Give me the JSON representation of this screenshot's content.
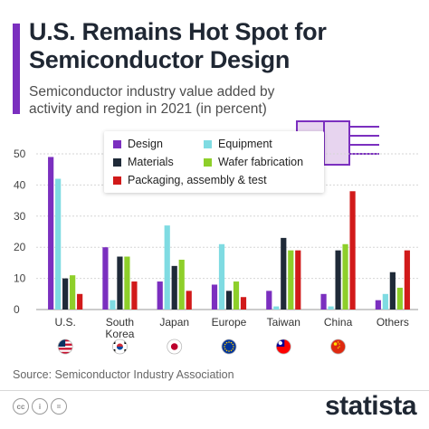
{
  "header": {
    "title": "U.S. Remains Hot Spot for Semiconductor Design",
    "subtitle": "Semiconductor industry value added by activity and region in 2021 (in percent)"
  },
  "colors": {
    "accent": "#7b2fbf",
    "design": "#7b2fbf",
    "equipment": "#7fdbe2",
    "materials": "#1f2a38",
    "wafer_fabrication": "#8ecf2a",
    "packaging": "#d11a1a"
  },
  "chart_data": {
    "type": "bar",
    "categories": [
      "U.S.",
      "South Korea",
      "Japan",
      "Europe",
      "Taiwan",
      "China",
      "Others"
    ],
    "category_lines": [
      [
        "U.S."
      ],
      [
        "South",
        "Korea"
      ],
      [
        "Japan"
      ],
      [
        "Europe"
      ],
      [
        "Taiwan"
      ],
      [
        "China"
      ],
      [
        "Others"
      ]
    ],
    "series": [
      {
        "name": "Design",
        "values": [
          49,
          20,
          9,
          8,
          6,
          5,
          3
        ]
      },
      {
        "name": "Equipment",
        "values": [
          42,
          3,
          27,
          21,
          1,
          1,
          5
        ]
      },
      {
        "name": "Materials",
        "values": [
          10,
          17,
          14,
          6,
          23,
          19,
          12
        ]
      },
      {
        "name": "Wafer fabrication",
        "values": [
          11,
          17,
          16,
          9,
          19,
          21,
          7
        ]
      },
      {
        "name": "Packaging, assembly & test",
        "values": [
          5,
          9,
          6,
          4,
          19,
          38,
          19
        ]
      }
    ],
    "ylim": [
      0,
      50
    ],
    "yticks": [
      0,
      10,
      20,
      30,
      40,
      50
    ],
    "grid": true,
    "legend": "top-center",
    "flags": [
      "us-flag-icon",
      "south-korea-flag-icon",
      "japan-flag-icon",
      "eu-flag-icon",
      "taiwan-flag-icon",
      "china-flag-icon"
    ]
  },
  "footer": {
    "source": "Source: Semiconductor Industry Association",
    "brand": "statista",
    "license_icons": [
      "cc",
      "i",
      "="
    ]
  }
}
